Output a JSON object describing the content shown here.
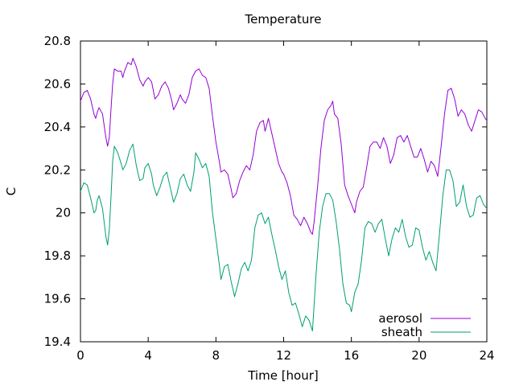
{
  "chart_data": {
    "type": "line",
    "title": "Temperature",
    "xlabel": "Time [hour]",
    "ylabel": "C",
    "xlim": [
      0,
      24
    ],
    "ylim": [
      19.4,
      20.8
    ],
    "xticks": [
      0,
      4,
      8,
      12,
      16,
      20,
      24
    ],
    "yticks": [
      19.4,
      19.6,
      19.8,
      20,
      20.2,
      20.4,
      20.6,
      20.8
    ],
    "xtick_labels": [
      "0",
      "4",
      "8",
      "12",
      "16",
      "20",
      "24"
    ],
    "ytick_labels": [
      "19.4",
      "19.6",
      "19.8",
      "20",
      "20.2",
      "20.4",
      "20.6",
      "20.8"
    ],
    "grid": false,
    "legend_position": "bottom-right",
    "series": [
      {
        "name": "aerosol",
        "color": "#9400d3",
        "points": [
          [
            0.0,
            20.52
          ],
          [
            0.2,
            20.56
          ],
          [
            0.4,
            20.57
          ],
          [
            0.6,
            20.53
          ],
          [
            0.8,
            20.46
          ],
          [
            0.9,
            20.44
          ],
          [
            1.0,
            20.47
          ],
          [
            1.1,
            20.49
          ],
          [
            1.3,
            20.46
          ],
          [
            1.5,
            20.35
          ],
          [
            1.6,
            20.31
          ],
          [
            1.7,
            20.35
          ],
          [
            1.8,
            20.48
          ],
          [
            1.9,
            20.6
          ],
          [
            2.0,
            20.67
          ],
          [
            2.2,
            20.66
          ],
          [
            2.4,
            20.66
          ],
          [
            2.5,
            20.63
          ],
          [
            2.6,
            20.66
          ],
          [
            2.8,
            20.7
          ],
          [
            3.0,
            20.69
          ],
          [
            3.1,
            20.72
          ],
          [
            3.3,
            20.68
          ],
          [
            3.5,
            20.62
          ],
          [
            3.7,
            20.59
          ],
          [
            3.8,
            20.61
          ],
          [
            4.0,
            20.63
          ],
          [
            4.2,
            20.61
          ],
          [
            4.3,
            20.57
          ],
          [
            4.4,
            20.53
          ],
          [
            4.6,
            20.55
          ],
          [
            4.8,
            20.59
          ],
          [
            5.0,
            20.61
          ],
          [
            5.2,
            20.58
          ],
          [
            5.4,
            20.52
          ],
          [
            5.5,
            20.48
          ],
          [
            5.7,
            20.51
          ],
          [
            5.9,
            20.55
          ],
          [
            6.0,
            20.53
          ],
          [
            6.2,
            20.51
          ],
          [
            6.4,
            20.55
          ],
          [
            6.6,
            20.63
          ],
          [
            6.8,
            20.66
          ],
          [
            7.0,
            20.67
          ],
          [
            7.2,
            20.64
          ],
          [
            7.4,
            20.63
          ],
          [
            7.6,
            20.58
          ],
          [
            7.8,
            20.45
          ],
          [
            8.0,
            20.33
          ],
          [
            8.2,
            20.24
          ],
          [
            8.3,
            20.19
          ],
          [
            8.5,
            20.2
          ],
          [
            8.7,
            20.18
          ],
          [
            8.9,
            20.11
          ],
          [
            9.0,
            20.07
          ],
          [
            9.2,
            20.09
          ],
          [
            9.4,
            20.15
          ],
          [
            9.6,
            20.19
          ],
          [
            9.8,
            20.22
          ],
          [
            10.0,
            20.2
          ],
          [
            10.2,
            20.27
          ],
          [
            10.4,
            20.38
          ],
          [
            10.6,
            20.42
          ],
          [
            10.8,
            20.43
          ],
          [
            10.9,
            20.38
          ],
          [
            11.0,
            20.41
          ],
          [
            11.1,
            20.44
          ],
          [
            11.3,
            20.37
          ],
          [
            11.5,
            20.3
          ],
          [
            11.7,
            20.23
          ],
          [
            11.9,
            20.19
          ],
          [
            12.0,
            20.18
          ],
          [
            12.2,
            20.14
          ],
          [
            12.4,
            20.08
          ],
          [
            12.6,
            19.99
          ],
          [
            12.8,
            19.97
          ],
          [
            13.0,
            19.94
          ],
          [
            13.2,
            19.98
          ],
          [
            13.4,
            19.95
          ],
          [
            13.6,
            19.91
          ],
          [
            13.7,
            19.9
          ],
          [
            13.8,
            19.96
          ],
          [
            14.0,
            20.12
          ],
          [
            14.2,
            20.3
          ],
          [
            14.4,
            20.43
          ],
          [
            14.6,
            20.48
          ],
          [
            14.8,
            20.5
          ],
          [
            14.9,
            20.52
          ],
          [
            15.0,
            20.46
          ],
          [
            15.2,
            20.44
          ],
          [
            15.4,
            20.32
          ],
          [
            15.6,
            20.13
          ],
          [
            15.8,
            20.08
          ],
          [
            16.0,
            20.04
          ],
          [
            16.2,
            20.0
          ],
          [
            16.3,
            20.05
          ],
          [
            16.5,
            20.1
          ],
          [
            16.7,
            20.12
          ],
          [
            16.9,
            20.21
          ],
          [
            17.1,
            20.31
          ],
          [
            17.3,
            20.33
          ],
          [
            17.5,
            20.33
          ],
          [
            17.7,
            20.3
          ],
          [
            17.9,
            20.35
          ],
          [
            18.1,
            20.31
          ],
          [
            18.3,
            20.23
          ],
          [
            18.5,
            20.27
          ],
          [
            18.7,
            20.35
          ],
          [
            18.9,
            20.36
          ],
          [
            19.1,
            20.33
          ],
          [
            19.3,
            20.36
          ],
          [
            19.5,
            20.31
          ],
          [
            19.7,
            20.26
          ],
          [
            19.9,
            20.26
          ],
          [
            20.1,
            20.3
          ],
          [
            20.3,
            20.25
          ],
          [
            20.5,
            20.19
          ],
          [
            20.7,
            20.24
          ],
          [
            20.9,
            20.22
          ],
          [
            21.1,
            20.17
          ],
          [
            21.3,
            20.31
          ],
          [
            21.5,
            20.46
          ],
          [
            21.7,
            20.57
          ],
          [
            21.9,
            20.58
          ],
          [
            22.1,
            20.53
          ],
          [
            22.3,
            20.45
          ],
          [
            22.5,
            20.48
          ],
          [
            22.7,
            20.46
          ],
          [
            22.9,
            20.41
          ],
          [
            23.1,
            20.38
          ],
          [
            23.3,
            20.43
          ],
          [
            23.5,
            20.48
          ],
          [
            23.7,
            20.47
          ],
          [
            23.9,
            20.44
          ],
          [
            24.0,
            20.43
          ]
        ]
      },
      {
        "name": "sheath",
        "color": "#009e73",
        "points": [
          [
            0.0,
            20.1
          ],
          [
            0.2,
            20.14
          ],
          [
            0.4,
            20.13
          ],
          [
            0.6,
            20.07
          ],
          [
            0.8,
            20.0
          ],
          [
            0.9,
            20.01
          ],
          [
            1.0,
            20.06
          ],
          [
            1.1,
            20.08
          ],
          [
            1.3,
            20.02
          ],
          [
            1.5,
            19.89
          ],
          [
            1.6,
            19.85
          ],
          [
            1.7,
            19.92
          ],
          [
            1.8,
            20.07
          ],
          [
            1.9,
            20.24
          ],
          [
            2.0,
            20.31
          ],
          [
            2.2,
            20.28
          ],
          [
            2.4,
            20.23
          ],
          [
            2.5,
            20.2
          ],
          [
            2.7,
            20.23
          ],
          [
            2.9,
            20.29
          ],
          [
            3.1,
            20.32
          ],
          [
            3.3,
            20.22
          ],
          [
            3.5,
            20.15
          ],
          [
            3.7,
            20.16
          ],
          [
            3.8,
            20.21
          ],
          [
            4.0,
            20.23
          ],
          [
            4.2,
            20.18
          ],
          [
            4.3,
            20.13
          ],
          [
            4.5,
            20.08
          ],
          [
            4.7,
            20.12
          ],
          [
            4.9,
            20.17
          ],
          [
            5.1,
            20.19
          ],
          [
            5.3,
            20.12
          ],
          [
            5.5,
            20.05
          ],
          [
            5.7,
            20.09
          ],
          [
            5.9,
            20.16
          ],
          [
            6.1,
            20.18
          ],
          [
            6.3,
            20.13
          ],
          [
            6.5,
            20.1
          ],
          [
            6.7,
            20.19
          ],
          [
            6.8,
            20.28
          ],
          [
            7.0,
            20.25
          ],
          [
            7.2,
            20.21
          ],
          [
            7.4,
            20.23
          ],
          [
            7.6,
            20.17
          ],
          [
            7.8,
            20.0
          ],
          [
            8.0,
            19.88
          ],
          [
            8.2,
            19.76
          ],
          [
            8.3,
            19.69
          ],
          [
            8.5,
            19.75
          ],
          [
            8.7,
            19.76
          ],
          [
            8.9,
            19.68
          ],
          [
            9.1,
            19.61
          ],
          [
            9.3,
            19.67
          ],
          [
            9.5,
            19.74
          ],
          [
            9.7,
            19.77
          ],
          [
            9.9,
            19.73
          ],
          [
            10.1,
            19.78
          ],
          [
            10.3,
            19.93
          ],
          [
            10.5,
            19.99
          ],
          [
            10.7,
            20.0
          ],
          [
            10.9,
            19.95
          ],
          [
            11.1,
            19.98
          ],
          [
            11.3,
            19.9
          ],
          [
            11.5,
            19.83
          ],
          [
            11.7,
            19.75
          ],
          [
            11.9,
            19.69
          ],
          [
            12.1,
            19.73
          ],
          [
            12.3,
            19.63
          ],
          [
            12.5,
            19.57
          ],
          [
            12.7,
            19.58
          ],
          [
            12.9,
            19.53
          ],
          [
            13.1,
            19.47
          ],
          [
            13.3,
            19.52
          ],
          [
            13.5,
            19.5
          ],
          [
            13.7,
            19.45
          ],
          [
            13.9,
            19.7
          ],
          [
            14.1,
            19.91
          ],
          [
            14.3,
            20.03
          ],
          [
            14.5,
            20.09
          ],
          [
            14.7,
            20.09
          ],
          [
            14.9,
            20.06
          ],
          [
            15.1,
            19.96
          ],
          [
            15.3,
            19.83
          ],
          [
            15.5,
            19.67
          ],
          [
            15.7,
            19.58
          ],
          [
            15.9,
            19.57
          ],
          [
            16.0,
            19.54
          ],
          [
            16.2,
            19.63
          ],
          [
            16.4,
            19.67
          ],
          [
            16.6,
            19.78
          ],
          [
            16.8,
            19.93
          ],
          [
            17.0,
            19.96
          ],
          [
            17.2,
            19.95
          ],
          [
            17.4,
            19.91
          ],
          [
            17.6,
            19.95
          ],
          [
            17.8,
            19.97
          ],
          [
            18.0,
            19.88
          ],
          [
            18.2,
            19.8
          ],
          [
            18.4,
            19.88
          ],
          [
            18.6,
            19.93
          ],
          [
            18.8,
            19.91
          ],
          [
            19.0,
            19.97
          ],
          [
            19.2,
            19.89
          ],
          [
            19.4,
            19.84
          ],
          [
            19.6,
            19.85
          ],
          [
            19.8,
            19.93
          ],
          [
            20.0,
            19.92
          ],
          [
            20.2,
            19.84
          ],
          [
            20.4,
            19.78
          ],
          [
            20.6,
            19.82
          ],
          [
            20.8,
            19.77
          ],
          [
            21.0,
            19.73
          ],
          [
            21.2,
            19.9
          ],
          [
            21.4,
            20.08
          ],
          [
            21.6,
            20.2
          ],
          [
            21.8,
            20.2
          ],
          [
            22.0,
            20.15
          ],
          [
            22.2,
            20.03
          ],
          [
            22.4,
            20.05
          ],
          [
            22.6,
            20.13
          ],
          [
            22.8,
            20.03
          ],
          [
            23.0,
            19.98
          ],
          [
            23.2,
            19.99
          ],
          [
            23.4,
            20.07
          ],
          [
            23.6,
            20.08
          ],
          [
            23.8,
            20.04
          ],
          [
            24.0,
            20.02
          ]
        ]
      }
    ]
  }
}
